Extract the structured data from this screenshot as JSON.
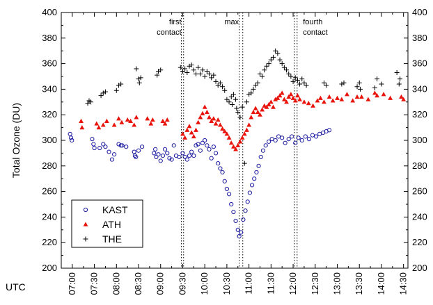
{
  "chart_data": {
    "type": "scatter",
    "ylabel": "Total Ozone (DU)",
    "xlabel": "UTC",
    "ylim": [
      200,
      400
    ],
    "y_ticks": [
      200,
      220,
      240,
      260,
      280,
      300,
      320,
      340,
      360,
      380,
      400
    ],
    "x_range_hours": [
      6.75,
      14.6
    ],
    "x_ticks": [
      "07:00",
      "07:30",
      "08:00",
      "08:30",
      "09:00",
      "09:30",
      "10:00",
      "10:30",
      "11:00",
      "11:30",
      "12:00",
      "12:30",
      "13:00",
      "13:30",
      "14:00",
      "14:30"
    ],
    "annotations": [
      {
        "lines": [
          "first",
          "contact"
        ],
        "at_hours": 9.55
      },
      {
        "lines": [
          "max"
        ],
        "at_hours": 10.85
      },
      {
        "lines": [
          "fourth",
          "contact"
        ],
        "at_hours": 12.35
      }
    ],
    "contact_lines_hours": [
      9.47,
      9.52,
      10.78,
      10.86,
      12.03,
      12.09
    ],
    "legend": {
      "position": "bottom-left"
    },
    "series": [
      {
        "name": "KAST",
        "marker": "open-circle",
        "color": "#1a1aa0",
        "points": [
          [
            6.95,
            305
          ],
          [
            6.97,
            302
          ],
          [
            6.99,
            300
          ],
          [
            7.45,
            301
          ],
          [
            7.48,
            297
          ],
          [
            7.5,
            294
          ],
          [
            7.62,
            294
          ],
          [
            7.7,
            297
          ],
          [
            7.75,
            295
          ],
          [
            7.83,
            291
          ],
          [
            7.9,
            285
          ],
          [
            7.95,
            289
          ],
          [
            8.05,
            297
          ],
          [
            8.1,
            296
          ],
          [
            8.13,
            296
          ],
          [
            8.22,
            295
          ],
          [
            8.4,
            291
          ],
          [
            8.42,
            288
          ],
          [
            8.44,
            287
          ],
          [
            8.5,
            292
          ],
          [
            8.58,
            295
          ],
          [
            8.85,
            290
          ],
          [
            8.88,
            293
          ],
          [
            8.9,
            287
          ],
          [
            8.95,
            289
          ],
          [
            9.0,
            284
          ],
          [
            9.05,
            288
          ],
          [
            9.1,
            293
          ],
          [
            9.15,
            290
          ],
          [
            9.2,
            286
          ],
          [
            9.25,
            285
          ],
          [
            9.3,
            296
          ],
          [
            9.35,
            288
          ],
          [
            9.42,
            287
          ],
          [
            9.5,
            290
          ],
          [
            9.55,
            287
          ],
          [
            9.6,
            285
          ],
          [
            9.65,
            288
          ],
          [
            9.7,
            291
          ],
          [
            9.75,
            288
          ],
          [
            9.8,
            296
          ],
          [
            9.85,
            297
          ],
          [
            9.9,
            292
          ],
          [
            9.95,
            298
          ],
          [
            10.0,
            300
          ],
          [
            10.05,
            296
          ],
          [
            10.1,
            293
          ],
          [
            10.15,
            286
          ],
          [
            10.2,
            295
          ],
          [
            10.25,
            290
          ],
          [
            10.3,
            282
          ],
          [
            10.35,
            278
          ],
          [
            10.4,
            275
          ],
          [
            10.45,
            268
          ],
          [
            10.5,
            262
          ],
          [
            10.55,
            258
          ],
          [
            10.6,
            250
          ],
          [
            10.65,
            244
          ],
          [
            10.7,
            237
          ],
          [
            10.75,
            230
          ],
          [
            10.78,
            225
          ],
          [
            10.82,
            228
          ],
          [
            10.87,
            238
          ],
          [
            10.92,
            245
          ],
          [
            10.97,
            252
          ],
          [
            11.02,
            259
          ],
          [
            11.07,
            265
          ],
          [
            11.12,
            270
          ],
          [
            11.17,
            275
          ],
          [
            11.22,
            280
          ],
          [
            11.27,
            287
          ],
          [
            11.32,
            292
          ],
          [
            11.38,
            296
          ],
          [
            11.45,
            299
          ],
          [
            11.52,
            301
          ],
          [
            11.6,
            300
          ],
          [
            11.67,
            303
          ],
          [
            11.75,
            302
          ],
          [
            11.82,
            298
          ],
          [
            11.9,
            301
          ],
          [
            11.97,
            303
          ],
          [
            12.05,
            298
          ],
          [
            12.12,
            302
          ],
          [
            12.2,
            300
          ],
          [
            12.28,
            303
          ],
          [
            12.36,
            301
          ],
          [
            12.44,
            304
          ],
          [
            12.52,
            303
          ],
          [
            12.6,
            305
          ],
          [
            12.68,
            306
          ],
          [
            12.75,
            307
          ],
          [
            12.82,
            308
          ]
        ]
      },
      {
        "name": "ATH",
        "marker": "filled-triangle",
        "color": "#e8140c",
        "points": [
          [
            7.2,
            315
          ],
          [
            7.22,
            310
          ],
          [
            7.55,
            313
          ],
          [
            7.6,
            310
          ],
          [
            7.7,
            312
          ],
          [
            7.78,
            315
          ],
          [
            7.95,
            312
          ],
          [
            8.05,
            317
          ],
          [
            8.12,
            314
          ],
          [
            8.25,
            316
          ],
          [
            8.32,
            315
          ],
          [
            8.4,
            312
          ],
          [
            8.45,
            318
          ],
          [
            8.7,
            317
          ],
          [
            8.78,
            313
          ],
          [
            8.82,
            316
          ],
          [
            9.05,
            315
          ],
          [
            9.1,
            313
          ],
          [
            9.15,
            316
          ],
          [
            9.5,
            305
          ],
          [
            9.55,
            302
          ],
          [
            9.6,
            308
          ],
          [
            9.65,
            311
          ],
          [
            9.7,
            306
          ],
          [
            9.75,
            303
          ],
          [
            9.8,
            308
          ],
          [
            9.85,
            314
          ],
          [
            9.9,
            318
          ],
          [
            9.95,
            321
          ],
          [
            10.0,
            326
          ],
          [
            10.05,
            322
          ],
          [
            10.1,
            318
          ],
          [
            10.15,
            315
          ],
          [
            10.2,
            317
          ],
          [
            10.25,
            313
          ],
          [
            10.3,
            316
          ],
          [
            10.35,
            312
          ],
          [
            10.4,
            309
          ],
          [
            10.45,
            307
          ],
          [
            10.5,
            305
          ],
          [
            10.55,
            302
          ],
          [
            10.6,
            298
          ],
          [
            10.65,
            295
          ],
          [
            10.7,
            293
          ],
          [
            10.75,
            296
          ],
          [
            10.8,
            299
          ],
          [
            10.85,
            302
          ],
          [
            10.9,
            305
          ],
          [
            10.95,
            308
          ],
          [
            11.0,
            312
          ],
          [
            11.05,
            318
          ],
          [
            11.1,
            322
          ],
          [
            11.15,
            325
          ],
          [
            11.2,
            322
          ],
          [
            11.25,
            320
          ],
          [
            11.3,
            324
          ],
          [
            11.35,
            327
          ],
          [
            11.4,
            326
          ],
          [
            11.45,
            328
          ],
          [
            11.5,
            330
          ],
          [
            11.55,
            326
          ],
          [
            11.6,
            332
          ],
          [
            11.65,
            333
          ],
          [
            11.7,
            335
          ],
          [
            11.75,
            337
          ],
          [
            11.8,
            332
          ],
          [
            11.85,
            330
          ],
          [
            11.9,
            334
          ],
          [
            11.95,
            336
          ],
          [
            12.0,
            333
          ],
          [
            12.05,
            331
          ],
          [
            12.1,
            335
          ],
          [
            12.15,
            332
          ],
          [
            12.25,
            330
          ],
          [
            12.35,
            329
          ],
          [
            12.45,
            327
          ],
          [
            12.55,
            331
          ],
          [
            12.62,
            333
          ],
          [
            12.7,
            330
          ],
          [
            12.82,
            334
          ],
          [
            12.9,
            331
          ],
          [
            13.0,
            333
          ],
          [
            13.1,
            332
          ],
          [
            13.22,
            336
          ],
          [
            13.35,
            331
          ],
          [
            13.45,
            334
          ],
          [
            13.55,
            334
          ],
          [
            13.7,
            332
          ],
          [
            13.85,
            337
          ],
          [
            13.9,
            335
          ],
          [
            14.05,
            336
          ],
          [
            14.2,
            333
          ],
          [
            14.45,
            334
          ],
          [
            14.5,
            332
          ]
        ]
      },
      {
        "name": "THE",
        "marker": "plus",
        "color": "#000000",
        "points": [
          [
            7.35,
            329
          ],
          [
            7.38,
            331
          ],
          [
            7.42,
            330
          ],
          [
            7.65,
            335
          ],
          [
            7.7,
            337
          ],
          [
            7.75,
            338
          ],
          [
            8.0,
            339
          ],
          [
            8.05,
            343
          ],
          [
            8.1,
            344
          ],
          [
            8.45,
            356
          ],
          [
            8.5,
            348
          ],
          [
            8.52,
            345
          ],
          [
            8.55,
            349
          ],
          [
            8.92,
            351
          ],
          [
            8.95,
            354
          ],
          [
            9.0,
            355
          ],
          [
            9.45,
            357
          ],
          [
            9.5,
            354
          ],
          [
            9.55,
            356
          ],
          [
            9.6,
            353
          ],
          [
            9.65,
            358
          ],
          [
            9.7,
            359
          ],
          [
            9.75,
            355
          ],
          [
            9.8,
            352
          ],
          [
            9.85,
            357
          ],
          [
            9.9,
            352
          ],
          [
            9.95,
            355
          ],
          [
            10.0,
            350
          ],
          [
            10.05,
            354
          ],
          [
            10.1,
            352
          ],
          [
            10.15,
            349
          ],
          [
            10.2,
            351
          ],
          [
            10.25,
            346
          ],
          [
            10.3,
            343
          ],
          [
            10.35,
            345
          ],
          [
            10.4,
            342
          ],
          [
            10.45,
            339
          ],
          [
            10.5,
            332
          ],
          [
            10.55,
            330
          ],
          [
            10.6,
            334
          ],
          [
            10.62,
            328
          ],
          [
            10.65,
            336
          ],
          [
            10.7,
            332
          ],
          [
            10.72,
            325
          ],
          [
            10.75,
            322
          ],
          [
            10.8,
            318
          ],
          [
            10.85,
            326
          ],
          [
            10.9,
            282
          ],
          [
            10.95,
            330
          ],
          [
            11.0,
            336
          ],
          [
            11.05,
            337
          ],
          [
            11.1,
            340
          ],
          [
            11.15,
            343
          ],
          [
            11.2,
            345
          ],
          [
            11.25,
            352
          ],
          [
            11.3,
            350
          ],
          [
            11.35,
            355
          ],
          [
            11.4,
            358
          ],
          [
            11.45,
            360
          ],
          [
            11.5,
            363
          ],
          [
            11.55,
            365
          ],
          [
            11.6,
            370
          ],
          [
            11.65,
            368
          ],
          [
            11.7,
            363
          ],
          [
            11.75,
            360
          ],
          [
            11.8,
            357
          ],
          [
            11.85,
            355
          ],
          [
            11.9,
            352
          ],
          [
            11.95,
            350
          ],
          [
            12.0,
            346
          ],
          [
            12.05,
            349
          ],
          [
            12.1,
            347
          ],
          [
            12.15,
            344
          ],
          [
            12.2,
            348
          ],
          [
            12.25,
            345
          ],
          [
            12.3,
            343
          ],
          [
            12.7,
            345
          ],
          [
            12.75,
            343
          ],
          [
            13.1,
            344
          ],
          [
            13.15,
            345
          ],
          [
            13.45,
            342
          ],
          [
            13.5,
            345
          ],
          [
            13.52,
            340
          ],
          [
            13.85,
            341
          ],
          [
            13.9,
            348
          ],
          [
            14.0,
            344
          ],
          [
            14.35,
            353
          ],
          [
            14.4,
            344
          ],
          [
            14.42,
            348
          ]
        ]
      }
    ]
  }
}
